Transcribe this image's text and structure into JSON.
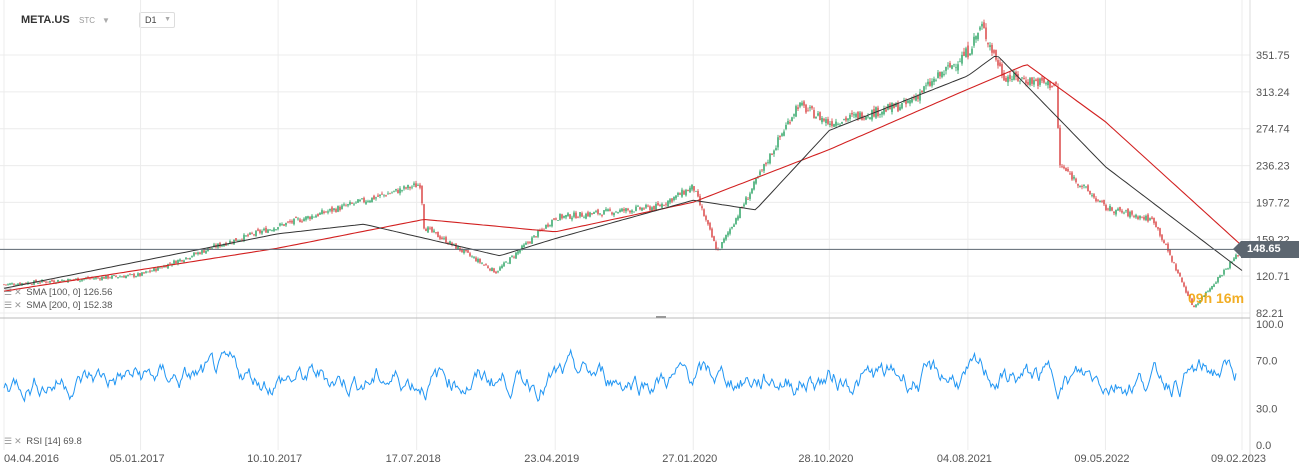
{
  "toolbar": {
    "symbol": "META.US",
    "instrument_type": "STC",
    "timeframe": "D1",
    "dropdown_icon": "chevron-down-icon"
  },
  "price_axis": [
    "351.75",
    "313.24",
    "274.74",
    "236.23",
    "197.72",
    "159.22",
    "120.71",
    "82.21"
  ],
  "rsi_axis": [
    "100.0",
    "70.0",
    "30.0",
    "0.0"
  ],
  "date_axis": [
    "04.04.2016",
    "05.01.2017",
    "10.10.2017",
    "17.07.2018",
    "23.04.2019",
    "27.01.2020",
    "28.10.2020",
    "04.08.2021",
    "09.05.2022",
    "09.02.2023"
  ],
  "current_price": "148.65",
  "countdown": "09h 16m",
  "indicators": {
    "sma100": {
      "label": "SMA [100, 0]",
      "value": "126.56",
      "color": "#333333"
    },
    "sma200": {
      "label": "SMA [200, 0]",
      "value": "152.38",
      "color": "#d22020"
    },
    "rsi": {
      "label": "RSI [14]",
      "value": "69.8",
      "color": "#2196f3"
    }
  },
  "colors": {
    "up_candle": "#1e9e5a",
    "down_candle": "#d83a3a",
    "grid": "#ececec",
    "price_line": "#5c6670"
  },
  "chart_data": [
    {
      "type": "candlestick",
      "title": "META.US",
      "timeframe": "D1",
      "ylim": [
        82.21,
        370
      ],
      "x_ticks": [
        "04.04.2016",
        "05.01.2017",
        "10.10.2017",
        "17.07.2018",
        "23.04.2019",
        "27.01.2020",
        "28.10.2020",
        "04.08.2021",
        "09.05.2022",
        "09.02.2023"
      ],
      "close_path": [
        {
          "date": "04.04.2016",
          "close": 112
        },
        {
          "date": "05.01.2017",
          "close": 122
        },
        {
          "date": "01.06.2017",
          "close": 151
        },
        {
          "date": "10.10.2017",
          "close": 173
        },
        {
          "date": "25.07.2018",
          "close": 217
        },
        {
          "date": "01.08.2018",
          "close": 172
        },
        {
          "date": "24.12.2018",
          "close": 125
        },
        {
          "date": "23.04.2019",
          "close": 182
        },
        {
          "date": "15.11.2019",
          "close": 193
        },
        {
          "date": "27.01.2020",
          "close": 214
        },
        {
          "date": "16.03.2020",
          "close": 146
        },
        {
          "date": "15.06.2020",
          "close": 232
        },
        {
          "date": "25.08.2020",
          "close": 300
        },
        {
          "date": "28.10.2020",
          "close": 281
        },
        {
          "date": "01.04.2021",
          "close": 300
        },
        {
          "date": "04.08.2021",
          "close": 355
        },
        {
          "date": "01.09.2021",
          "close": 382
        },
        {
          "date": "15.10.2021",
          "close": 330
        },
        {
          "date": "01.02.2022",
          "close": 320
        },
        {
          "date": "03.02.2022",
          "close": 238
        },
        {
          "date": "09.05.2022",
          "close": 192
        },
        {
          "date": "15.08.2022",
          "close": 179
        },
        {
          "date": "03.11.2022",
          "close": 88
        },
        {
          "date": "09.02.2023",
          "close": 148.65
        }
      ],
      "sma100_path": [
        {
          "date": "04.04.2016",
          "value": 108
        },
        {
          "date": "10.10.2017",
          "value": 165
        },
        {
          "date": "01.04.2018",
          "value": 175
        },
        {
          "date": "01.01.2019",
          "value": 142
        },
        {
          "date": "23.04.2019",
          "value": 160
        },
        {
          "date": "27.01.2020",
          "value": 200
        },
        {
          "date": "01.06.2020",
          "value": 190
        },
        {
          "date": "28.10.2020",
          "value": 273
        },
        {
          "date": "04.08.2021",
          "value": 330
        },
        {
          "date": "01.10.2021",
          "value": 352
        },
        {
          "date": "09.05.2022",
          "value": 235
        },
        {
          "date": "09.02.2023",
          "value": 126.56
        }
      ],
      "sma200_path": [
        {
          "date": "04.04.2016",
          "value": 105
        },
        {
          "date": "10.10.2017",
          "value": 150
        },
        {
          "date": "01.08.2018",
          "value": 180
        },
        {
          "date": "23.04.2019",
          "value": 167
        },
        {
          "date": "27.01.2020",
          "value": 198
        },
        {
          "date": "28.10.2020",
          "value": 253
        },
        {
          "date": "04.08.2021",
          "value": 316
        },
        {
          "date": "01.12.2021",
          "value": 342
        },
        {
          "date": "09.05.2022",
          "value": 282
        },
        {
          "date": "09.02.2023",
          "value": 152.38
        }
      ]
    },
    {
      "type": "line",
      "title": "RSI [14]",
      "ylim": [
        0,
        100
      ],
      "y_ticks": [
        "100.0",
        "70.0",
        "30.0",
        "0.0"
      ],
      "last_value": 69.8
    }
  ]
}
